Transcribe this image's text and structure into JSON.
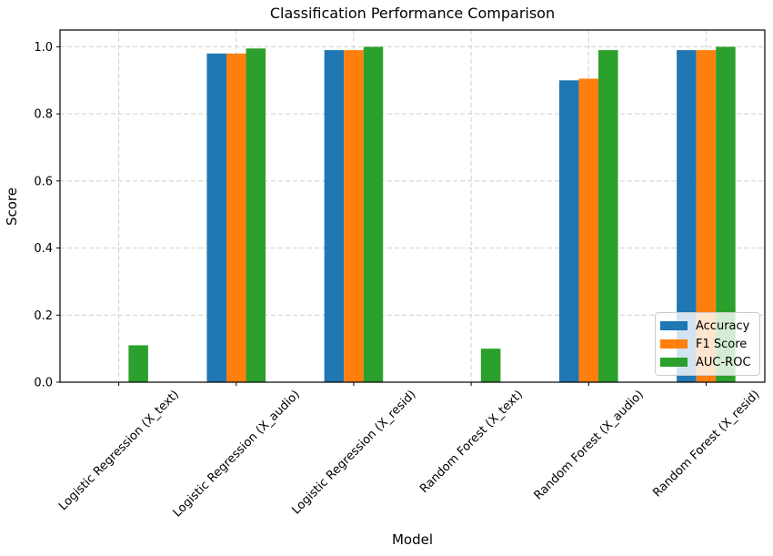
{
  "figure": {
    "title": "Classification Performance Comparison",
    "background": "#ffffff"
  },
  "chart_data": {
    "type": "bar",
    "title": "Classification Performance Comparison",
    "xlabel": "Model",
    "ylabel": "Score",
    "categories": [
      "Logistic Regression (X_text)",
      "Logistic Regression (X_audio)",
      "Logistic Regression (X_resid)",
      "Random Forest (X_text)",
      "Random Forest (X_audio)",
      "Random Forest (X_resid)"
    ],
    "series": [
      {
        "name": "Accuracy",
        "color": "#1f77b4",
        "values": [
          0.0,
          0.98,
          0.99,
          0.0,
          0.9,
          0.99
        ]
      },
      {
        "name": "F1 Score",
        "color": "#ff7f0e",
        "values": [
          0.0,
          0.98,
          0.99,
          0.0,
          0.905,
          0.99
        ]
      },
      {
        "name": "AUC-ROC",
        "color": "#2ca02c",
        "values": [
          0.11,
          0.995,
          1.0,
          0.1,
          0.99,
          1.0
        ]
      }
    ],
    "ylim": [
      0,
      1.05
    ],
    "yticks": [
      "0.0",
      "0.2",
      "0.4",
      "0.6",
      "0.8",
      "1.0"
    ],
    "grid": true,
    "grid_style": "dashed",
    "grid_color": "#d0d0d0",
    "spine_color": "#000000",
    "tick_rotation_deg": 45,
    "bar_width_fraction": 0.1667,
    "legend_position": "lower right"
  }
}
